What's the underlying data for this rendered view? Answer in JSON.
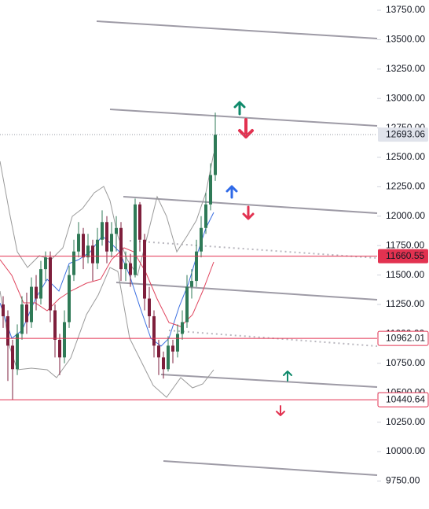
{
  "chart_data": {
    "type": "candlestick",
    "ylim": [
      9512,
      13837
    ],
    "yticks": [
      {
        "value": 9750,
        "label": "9750.00"
      },
      {
        "value": 10000,
        "label": "10000.00"
      },
      {
        "value": 10250,
        "label": "10250.00"
      },
      {
        "value": 10500,
        "label": "10500.00"
      },
      {
        "value": 10750,
        "label": "10750.00"
      },
      {
        "value": 11000,
        "label": "11000.00"
      },
      {
        "value": 11250,
        "label": "11250.00"
      },
      {
        "value": 11500,
        "label": "11500.00"
      },
      {
        "value": 11750,
        "label": "11750.00"
      },
      {
        "value": 12000,
        "label": "12000.00"
      },
      {
        "value": 12250,
        "label": "12250.00"
      },
      {
        "value": 12500,
        "label": "12500.00"
      },
      {
        "value": 12750,
        "label": "12750.00"
      },
      {
        "value": 13000,
        "label": "13000.00"
      },
      {
        "value": 13250,
        "label": "13250.00"
      },
      {
        "value": 13500,
        "label": "13500.00"
      },
      {
        "value": 13750,
        "label": "13750.00"
      }
    ],
    "up_color": "#2f7a57",
    "down_color": "#7e1f3c",
    "open": [
      11250,
      11150,
      10900,
      10700,
      11000,
      11250,
      11100,
      11400,
      11300,
      11550,
      11650,
      11200,
      10950,
      10800,
      11100,
      11500,
      11700,
      11850,
      11650,
      11750,
      11600,
      11800,
      11950,
      11700,
      11850,
      11900,
      11550,
      11600,
      11500,
      12100,
      11800,
      11300,
      11150,
      10900,
      10800,
      10700,
      10900,
      10850,
      11000,
      11100,
      11400,
      11450,
      11700,
      11900,
      12100,
      12350
    ],
    "high": [
      11320,
      11200,
      10950,
      11080,
      11320,
      11350,
      11480,
      11500,
      11620,
      11700,
      11700,
      11250,
      11000,
      11200,
      11580,
      11800,
      11950,
      11900,
      11850,
      11800,
      11900,
      12050,
      12000,
      11950,
      12000,
      11950,
      11700,
      11680,
      12150,
      12120,
      11850,
      11400,
      11200,
      10950,
      10850,
      10980,
      10950,
      11080,
      11200,
      11500,
      11550,
      11800,
      12000,
      12200,
      12450,
      12880
    ],
    "low": [
      11050,
      10600,
      10440,
      10650,
      10950,
      11000,
      11050,
      11200,
      11250,
      11450,
      11100,
      10800,
      10650,
      10750,
      11050,
      11450,
      11650,
      11550,
      11600,
      11450,
      11550,
      11750,
      11600,
      11650,
      11700,
      11450,
      11450,
      11400,
      11480,
      11700,
      11200,
      11050,
      10800,
      10650,
      10620,
      10680,
      10750,
      10800,
      10950,
      11050,
      11300,
      11400,
      11650,
      11850,
      12050,
      12300
    ],
    "close": [
      11150,
      10900,
      10700,
      11000,
      11250,
      11100,
      11400,
      11300,
      11550,
      11650,
      11200,
      10950,
      10800,
      11100,
      11500,
      11700,
      11850,
      11650,
      11750,
      11600,
      11800,
      11950,
      11700,
      11850,
      11900,
      11550,
      11600,
      11500,
      12100,
      11800,
      11300,
      11150,
      10900,
      10800,
      10700,
      10900,
      10850,
      11000,
      11100,
      11400,
      11450,
      11700,
      11900,
      12100,
      12350,
      12693
    ],
    "price_lines": [
      {
        "value": 12693.06,
        "label": "12693.06",
        "style": "last"
      },
      {
        "value": 11660.55,
        "label": "11660.55",
        "style": "filled"
      },
      {
        "value": 10962.01,
        "label": "10962.01",
        "style": "outline"
      },
      {
        "value": 10440.64,
        "label": "10440.64",
        "style": "outline"
      }
    ]
  }
}
